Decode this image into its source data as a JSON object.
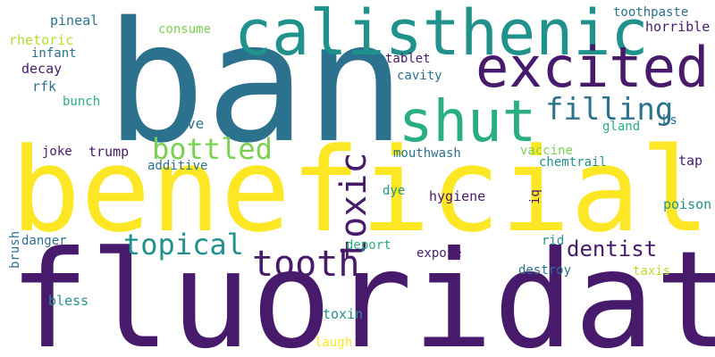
{
  "background": "#ffffff",
  "palette": {
    "dark_purple": "#481a6c",
    "steel_blue": "#2c718e",
    "teal": "#21918c",
    "green": "#28ae80",
    "lime": "#7ad151",
    "yellow": "#fde725"
  },
  "words": {
    "ban": "ban",
    "beneficial": "beneficial",
    "fluoridate": "fluoridate",
    "calisthenic": "calisthenic",
    "excited": "excited",
    "shut": "shut",
    "filling": "filling",
    "toxic": "toxic",
    "bottled": "bottled",
    "topical": "topical",
    "tooth": "tooth",
    "dentist": "dentist",
    "pineal": "pineal",
    "consume": "consume",
    "toothpaste": "toothpaste",
    "horrible": "horrible",
    "rhetoric": "rhetoric",
    "infant": "infant",
    "decay": "decay",
    "tablet": "tablet",
    "cavity": "cavity",
    "rfk": "rfk",
    "bunch": "bunch",
    "bs": "bs",
    "ve": "ve",
    "gland": "gland",
    "joke": "joke",
    "trump": "trump",
    "mouthwash": "mouthwash",
    "vaccine": "vaccine",
    "additive": "additive",
    "chemtrail": "chemtrail",
    "tap": "tap",
    "iq": "iq",
    "dye": "dye",
    "hygiene": "hygiene",
    "poison": "poison",
    "brush": "brush",
    "danger": "danger",
    "deport": "deport",
    "rid": "rid",
    "expose": "expose",
    "destroy": "destroy",
    "taxis": "taxis",
    "bless": "bless",
    "toxin": "toxin",
    "laugh": "laugh"
  },
  "word_colors": {
    "ban": "#2c718e",
    "beneficial": "#fde725",
    "fluoridate": "#481a6c",
    "calisthenic": "#21918c",
    "excited": "#481a6c",
    "shut": "#28ae80",
    "filling": "#2c718e",
    "toxic": "#481a6c",
    "bottled": "#7ad151",
    "topical": "#21918c",
    "tooth": "#481a6c",
    "dentist": "#481a6c",
    "pineal": "#2c718e",
    "consume": "#7ad151",
    "toothpaste": "#2c718e",
    "horrible": "#481a6c",
    "rhetoric": "#b5de2b",
    "infant": "#2c718e",
    "decay": "#481a6c",
    "tablet": "#481a6c",
    "cavity": "#2c718e",
    "rfk": "#2c718e",
    "bunch": "#28ae80",
    "bs": "#2c718e",
    "ve": "#2c718e",
    "gland": "#28ae80",
    "joke": "#481a6c",
    "trump": "#481a6c",
    "mouthwash": "#2c718e",
    "vaccine": "#7ad151",
    "additive": "#2c718e",
    "chemtrail": "#21918c",
    "tap": "#481a6c",
    "iq": "#481a6c",
    "dye": "#21918c",
    "hygiene": "#481a6c",
    "poison": "#21918c",
    "brush": "#2c718e",
    "danger": "#2c718e",
    "deport": "#28ae80",
    "rid": "#21918c",
    "expose": "#481a6c",
    "destroy": "#2c718e",
    "taxis": "#b5de2b",
    "bless": "#21918c",
    "toxin": "#21918c",
    "laugh": "#fde725"
  },
  "vertical_words": [
    "toxic",
    "iq",
    "brush"
  ]
}
